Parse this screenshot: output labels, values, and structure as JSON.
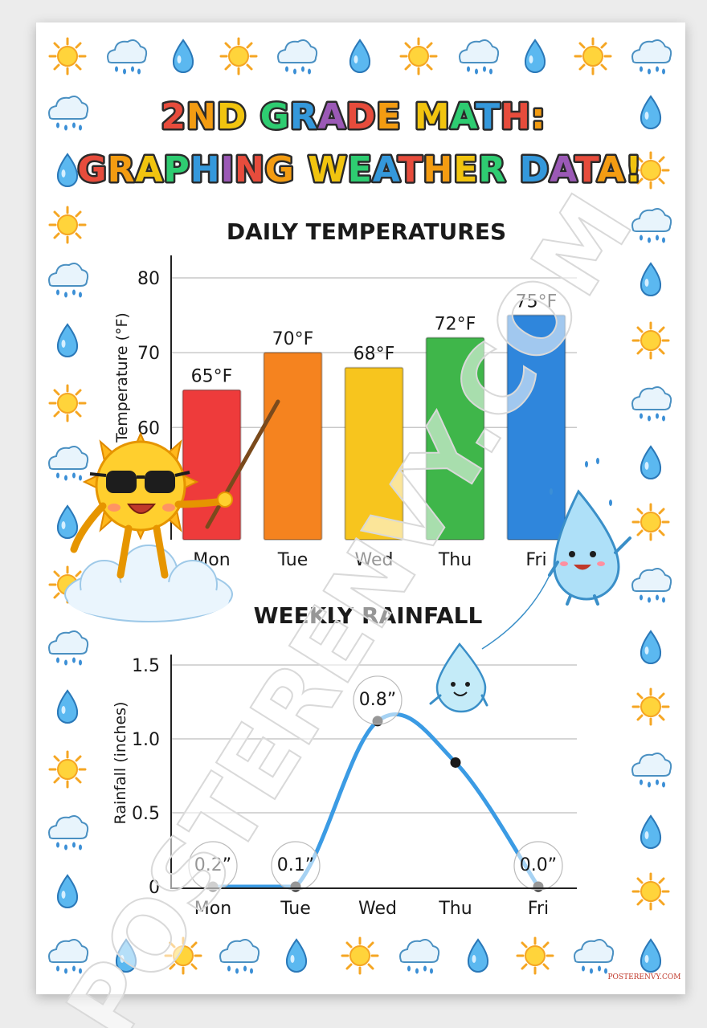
{
  "title": {
    "line1": "2ND GRADE MATH:",
    "line2": "GRAPHING WEATHER DATA!",
    "line1_colors": [
      "#e74c3c",
      "#f39c12",
      "#f1c40f",
      "#2ecc71",
      "#3498db",
      "#9b59b6",
      "#e74c3c",
      "#f39c12",
      "#f1c40f",
      "#2ecc71",
      "#3498db",
      "#e74c3c",
      "#f39c12",
      "#f1c40f",
      "#2ecc71"
    ],
    "line2_colors": [
      "#e74c3c",
      "#f39c12",
      "#f1c40f",
      "#2ecc71",
      "#3498db",
      "#9b59b6",
      "#e74c3c",
      "#f39c12",
      "#f1c40f",
      "#2ecc71",
      "#3498db",
      "#e74c3c",
      "#f39c12",
      "#f1c40f",
      "#2ecc71",
      "#3498db",
      "#9b59b6",
      "#e74c3c",
      "#f39c12",
      "#f1c40f",
      "#2ecc71",
      "#3498db"
    ]
  },
  "border_icons": [
    "sun-icon",
    "rain-cloud-icon",
    "water-drop-icon"
  ],
  "watermark": "POSTERENVY.COM",
  "footer_mark": "POSTERENVY.COM",
  "chart_data": [
    {
      "type": "bar",
      "title": "DAILY TEMPERATURES",
      "ylabel": "Temperature (°F)",
      "xlabel": "",
      "categories": [
        "Mon",
        "Tue",
        "Wed",
        "Thu",
        "Fri"
      ],
      "values": [
        65,
        70,
        68,
        72,
        75
      ],
      "data_labels": [
        "65°F",
        "70°F",
        "68°F",
        "72°F",
        "75°F"
      ],
      "yticks": [
        60,
        70,
        80
      ],
      "ylim": [
        45,
        83
      ],
      "grid": true,
      "colors": [
        "#ee3b3b",
        "#f5831f",
        "#f7c51e",
        "#3fb64a",
        "#2f86dc"
      ]
    },
    {
      "type": "line",
      "title": "WEEKLY RAINFALL",
      "ylabel": "Rainfall (inches)",
      "xlabel": "",
      "categories": [
        "Mon",
        "Tue",
        "Wed",
        "Thu",
        "Fri"
      ],
      "values": [
        0.2,
        0.1,
        0.8,
        0.6,
        0.0
      ],
      "data_labels": [
        "0.2”",
        "0.1”",
        "0.8”",
        "",
        "0.0”"
      ],
      "yticks": [
        "0",
        "0.5",
        "1.0",
        "1.5"
      ],
      "ylim": [
        0,
        1.5
      ],
      "grid": true,
      "line_color": "#3b9be4"
    }
  ]
}
